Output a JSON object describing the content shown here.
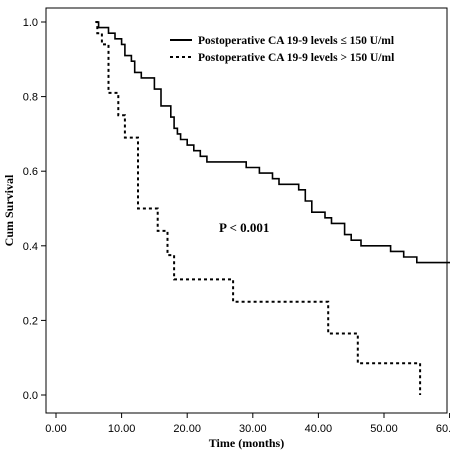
{
  "chart_data": {
    "type": "line",
    "step": true,
    "xlabel": "Time (months)",
    "ylabel": "Cum Survival",
    "xlim": [
      0,
      62
    ],
    "ylim": [
      0,
      1.0
    ],
    "x_ticks": [
      "0.00",
      "10.00",
      "20.00",
      "30.00",
      "40.00",
      "50.00",
      "60.00"
    ],
    "y_ticks": [
      "0.0",
      "0.2",
      "0.4",
      "0.6",
      "0.8",
      "1.0"
    ],
    "x_tick_values": [
      0,
      10,
      20,
      30,
      40,
      50,
      60
    ],
    "y_tick_values": [
      0,
      0.2,
      0.4,
      0.6,
      0.8,
      1.0
    ],
    "grid": false,
    "legend_position": "top-right",
    "annotation": "P < 0.001",
    "series": [
      {
        "name": "Postoperative CA 19-9 levels ≤ 150 U/ml",
        "style": "solid",
        "points": [
          [
            6.0,
            1.0
          ],
          [
            6.5,
            0.985
          ],
          [
            8.0,
            0.97
          ],
          [
            9.0,
            0.955
          ],
          [
            10.0,
            0.94
          ],
          [
            10.5,
            0.91
          ],
          [
            11.5,
            0.895
          ],
          [
            12.0,
            0.865
          ],
          [
            13.0,
            0.85
          ],
          [
            15.0,
            0.82
          ],
          [
            16.0,
            0.775
          ],
          [
            17.5,
            0.745
          ],
          [
            18.0,
            0.715
          ],
          [
            18.5,
            0.7
          ],
          [
            19.0,
            0.685
          ],
          [
            20.0,
            0.67
          ],
          [
            21.0,
            0.655
          ],
          [
            22.0,
            0.64
          ],
          [
            23.0,
            0.625
          ],
          [
            26.0,
            0.625
          ],
          [
            29.0,
            0.61
          ],
          [
            31.0,
            0.595
          ],
          [
            33.0,
            0.58
          ],
          [
            34.0,
            0.565
          ],
          [
            37.0,
            0.55
          ],
          [
            38.0,
            0.52
          ],
          [
            39.0,
            0.49
          ],
          [
            41.0,
            0.475
          ],
          [
            42.0,
            0.46
          ],
          [
            44.0,
            0.43
          ],
          [
            45.0,
            0.415
          ],
          [
            46.5,
            0.4
          ],
          [
            51.0,
            0.385
          ],
          [
            53.0,
            0.37
          ],
          [
            55.0,
            0.355
          ],
          [
            61.0,
            0.34
          ],
          [
            61.5,
            0.31
          ],
          [
            62.0,
            0.31
          ]
        ]
      },
      {
        "name": "Postoperative CA 19-9 levels > 150 U/ml",
        "style": "dashed",
        "points": [
          [
            6.0,
            1.0
          ],
          [
            6.3,
            0.97
          ],
          [
            7.0,
            0.94
          ],
          [
            8.0,
            0.81
          ],
          [
            9.5,
            0.75
          ],
          [
            10.5,
            0.69
          ],
          [
            12.5,
            0.5
          ],
          [
            15.5,
            0.44
          ],
          [
            17.0,
            0.375
          ],
          [
            18.0,
            0.31
          ],
          [
            27.0,
            0.25
          ],
          [
            41.5,
            0.165
          ],
          [
            46.0,
            0.085
          ],
          [
            55.5,
            0.0
          ]
        ]
      }
    ]
  }
}
